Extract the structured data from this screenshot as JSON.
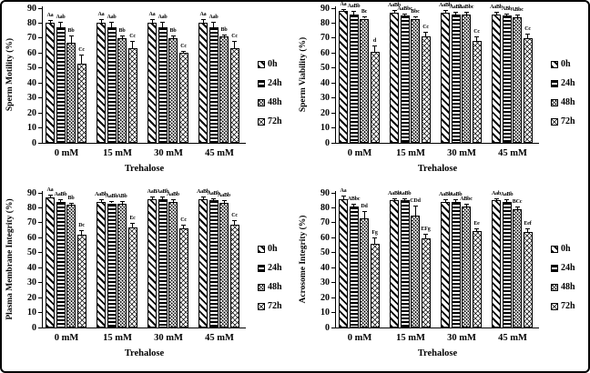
{
  "figure": {
    "background": "#ffffff",
    "border_color": "#000000",
    "ink_color": "#000000"
  },
  "chart_data": [
    {
      "type": "bar",
      "panel": "top-left",
      "ylabel": "Sperm Motility (%)",
      "xlabel": "Trehalose",
      "ylim": [
        0,
        90
      ],
      "yticks": [
        0,
        10,
        20,
        30,
        40,
        50,
        60,
        70,
        80,
        90
      ],
      "grid": false,
      "legend_position": "right",
      "categories": [
        "0 mM",
        "15 mM",
        "30 mM",
        "45 mM"
      ],
      "legend": [
        "0h",
        "24h",
        "48h",
        "72h"
      ],
      "series": [
        {
          "name": "0h",
          "values": [
            80,
            80,
            80,
            80
          ],
          "errors": [
            2,
            2.5,
            2.5,
            2.5
          ],
          "labels": [
            "Aa",
            "Aa",
            "Aa",
            "Aa"
          ]
        },
        {
          "name": "24h",
          "values": [
            77,
            77,
            77,
            77
          ],
          "errors": [
            4,
            4,
            4,
            4
          ],
          "labels": [
            "Aab",
            "Aab",
            "Aab",
            "Aab"
          ]
        },
        {
          "name": "48h",
          "values": [
            67,
            70,
            70,
            71
          ],
          "errors": [
            5,
            2,
            2,
            1.5
          ],
          "labels": [
            "Bb",
            "Bb",
            "Bb",
            "Bb"
          ]
        },
        {
          "name": "72h",
          "values": [
            53,
            63,
            60,
            63
          ],
          "errors": [
            6,
            5,
            1.5,
            5
          ],
          "labels": [
            "Cc",
            "Cc",
            "Cc",
            "Cc"
          ]
        }
      ]
    },
    {
      "type": "bar",
      "panel": "top-right",
      "ylabel": "Sperm Viability (%)",
      "xlabel": "Trehalose",
      "ylim": [
        0,
        90
      ],
      "yticks": [
        0,
        10,
        20,
        30,
        40,
        50,
        60,
        70,
        80,
        90
      ],
      "grid": false,
      "legend_position": "right",
      "categories": [
        "0 mM",
        "15 mM",
        "30 mM",
        "45 mM"
      ],
      "legend": [
        "0h",
        "24h",
        "48h",
        "72h"
      ],
      "series": [
        {
          "name": "0h",
          "values": [
            88,
            87,
            87,
            86
          ],
          "errors": [
            1.5,
            1.5,
            1.5,
            1.5
          ],
          "labels": [
            "Aa",
            "AaBb",
            "AaBb",
            "AaBb"
          ]
        },
        {
          "name": "24h",
          "values": [
            86,
            85,
            86,
            85
          ],
          "errors": [
            2,
            1.5,
            1.5,
            1.5
          ],
          "labels": [
            "AaBb",
            "AaBbc",
            "AaBb",
            "ABb"
          ]
        },
        {
          "name": "48h",
          "values": [
            83,
            83,
            86,
            84
          ],
          "errors": [
            1.5,
            1.5,
            1.5,
            1.5
          ],
          "labels": [
            "Bc",
            "Bbc",
            "AaBbc",
            "ABbc"
          ]
        },
        {
          "name": "72h",
          "values": [
            61,
            71,
            68,
            70
          ],
          "errors": [
            4,
            3,
            3,
            3
          ],
          "labels": [
            "d",
            "Cc",
            "Cc",
            "Cc"
          ]
        }
      ]
    },
    {
      "type": "bar",
      "panel": "bottom-left",
      "ylabel": "Plasma Membrane Integrity (%)",
      "xlabel": "Trehalose",
      "ylim": [
        0,
        90
      ],
      "yticks": [
        0,
        10,
        20,
        30,
        40,
        50,
        60,
        70,
        80,
        90
      ],
      "grid": false,
      "legend_position": "right",
      "categories": [
        "0 mM",
        "15 mM",
        "30 mM",
        "45 mM"
      ],
      "legend": [
        "0h",
        "24h",
        "48h",
        "72h"
      ],
      "series": [
        {
          "name": "0h",
          "values": [
            87,
            84,
            86,
            86
          ],
          "errors": [
            2,
            1.5,
            1.5,
            1.5
          ],
          "labels": [
            "Aa",
            "AaBb",
            "AaB",
            "AaBb"
          ]
        },
        {
          "name": "24h",
          "values": [
            84,
            83,
            86,
            85
          ],
          "errors": [
            1.5,
            1.5,
            1.5,
            1.5
          ],
          "labels": [
            "AaBb",
            "AaBb",
            "AaBb",
            "AaBb"
          ]
        },
        {
          "name": "48h",
          "values": [
            82,
            82.5,
            84,
            83.5
          ],
          "errors": [
            1.5,
            2,
            1.5,
            1.5
          ],
          "labels": [
            "Bb",
            "ABb",
            "AaBb",
            "AaBb"
          ]
        },
        {
          "name": "72h",
          "values": [
            62,
            67,
            66,
            69
          ],
          "errors": [
            3,
            3,
            3,
            3
          ],
          "labels": [
            "Dc",
            "Ec",
            "Cc",
            "Cc"
          ]
        }
      ]
    },
    {
      "type": "bar",
      "panel": "bottom-right",
      "ylabel": "Acrosome Integrity (%)",
      "xlabel": "Trehalose",
      "ylim": [
        0,
        90
      ],
      "yticks": [
        0,
        10,
        20,
        30,
        40,
        50,
        60,
        70,
        80,
        90
      ],
      "grid": false,
      "legend_position": "right",
      "categories": [
        "0 mM",
        "15 mM",
        "30 mM",
        "45 mM"
      ],
      "legend": [
        "0h",
        "24h",
        "48h",
        "72h"
      ],
      "series": [
        {
          "name": "0h",
          "values": [
            86,
            85,
            84,
            85
          ],
          "errors": [
            2,
            1.5,
            1.5,
            1.5
          ],
          "labels": [
            "Aa",
            "AaBb",
            "AaBb",
            "Aab"
          ]
        },
        {
          "name": "24h",
          "values": [
            81,
            85,
            84,
            84
          ],
          "errors": [
            2,
            1.5,
            1.5,
            1.5
          ],
          "labels": [
            "ABbc",
            "AaBb",
            "AaBb",
            "AaBb"
          ]
        },
        {
          "name": "48h",
          "values": [
            73,
            74.5,
            81,
            79
          ],
          "errors": [
            5,
            7,
            2,
            2
          ],
          "labels": [
            "Dd",
            "CDd",
            "ABbc",
            "BCc"
          ]
        },
        {
          "name": "72h",
          "values": [
            56,
            59.5,
            64.5,
            64
          ],
          "errors": [
            4,
            3,
            2,
            2
          ],
          "labels": [
            "Fg",
            "EFg",
            "Ee",
            "Eef"
          ]
        }
      ]
    }
  ]
}
